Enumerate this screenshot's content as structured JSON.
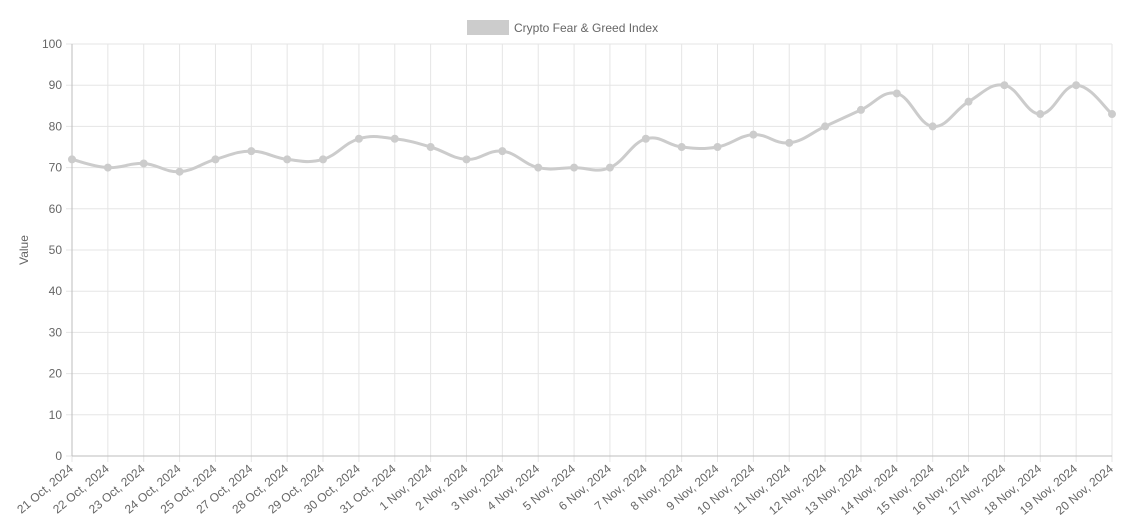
{
  "chart_data": {
    "type": "line",
    "legend": {
      "label": "Crypto Fear & Greed Index",
      "position": "top-center"
    },
    "ylabel": "Value",
    "xlabel": "",
    "ylim": [
      0,
      100
    ],
    "y_ticks": [
      0,
      10,
      20,
      30,
      40,
      50,
      60,
      70,
      80,
      90,
      100
    ],
    "grid": true,
    "colors": {
      "series": "#cccccc",
      "grid": "#e5e5e5",
      "axis": "#bdbdbd",
      "text": "#666666"
    },
    "categories": [
      "21 Oct, 2024",
      "22 Oct, 2024",
      "23 Oct, 2024",
      "24 Oct, 2024",
      "25 Oct, 2024",
      "27 Oct, 2024",
      "28 Oct, 2024",
      "29 Oct, 2024",
      "30 Oct, 2024",
      "31 Oct, 2024",
      "1 Nov, 2024",
      "2 Nov, 2024",
      "3 Nov, 2024",
      "4 Nov, 2024",
      "5 Nov, 2024",
      "6 Nov, 2024",
      "7 Nov, 2024",
      "8 Nov, 2024",
      "9 Nov, 2024",
      "10 Nov, 2024",
      "11 Nov, 2024",
      "12 Nov, 2024",
      "13 Nov, 2024",
      "14 Nov, 2024",
      "15 Nov, 2024",
      "16 Nov, 2024",
      "17 Nov, 2024",
      "18 Nov, 2024",
      "19 Nov, 2024",
      "20 Nov, 2024"
    ],
    "series": [
      {
        "name": "Crypto Fear & Greed Index",
        "values": [
          72,
          70,
          71,
          69,
          72,
          74,
          72,
          72,
          77,
          77,
          75,
          72,
          74,
          70,
          70,
          70,
          77,
          75,
          75,
          78,
          76,
          80,
          84,
          88,
          80,
          86,
          90,
          83,
          90,
          83
        ]
      }
    ]
  }
}
